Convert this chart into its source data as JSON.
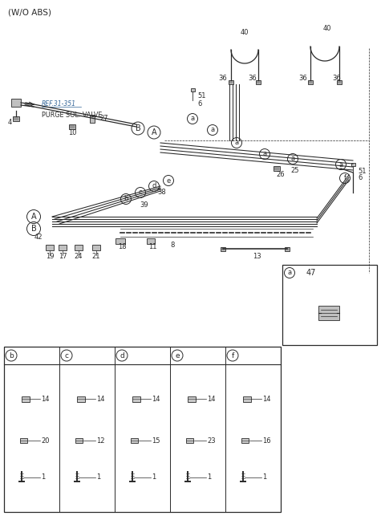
{
  "title": "(W/O ABS)",
  "bg_color": "#ffffff",
  "line_color": "#2a2a2a",
  "figsize": [
    4.8,
    6.48
  ],
  "dpi": 100,
  "ref_text": "REF.31-351",
  "purge_text": "PURGE SOL. VALVE",
  "section_labels": [
    "b",
    "c",
    "d",
    "e",
    "f"
  ],
  "part_data": {
    "b": [
      "14",
      "20",
      "1"
    ],
    "c": [
      "14",
      "12",
      "1"
    ],
    "d": [
      "14",
      "15",
      "1"
    ],
    "e": [
      "14",
      "23",
      "1"
    ],
    "f": [
      "14",
      "16",
      "1"
    ]
  }
}
